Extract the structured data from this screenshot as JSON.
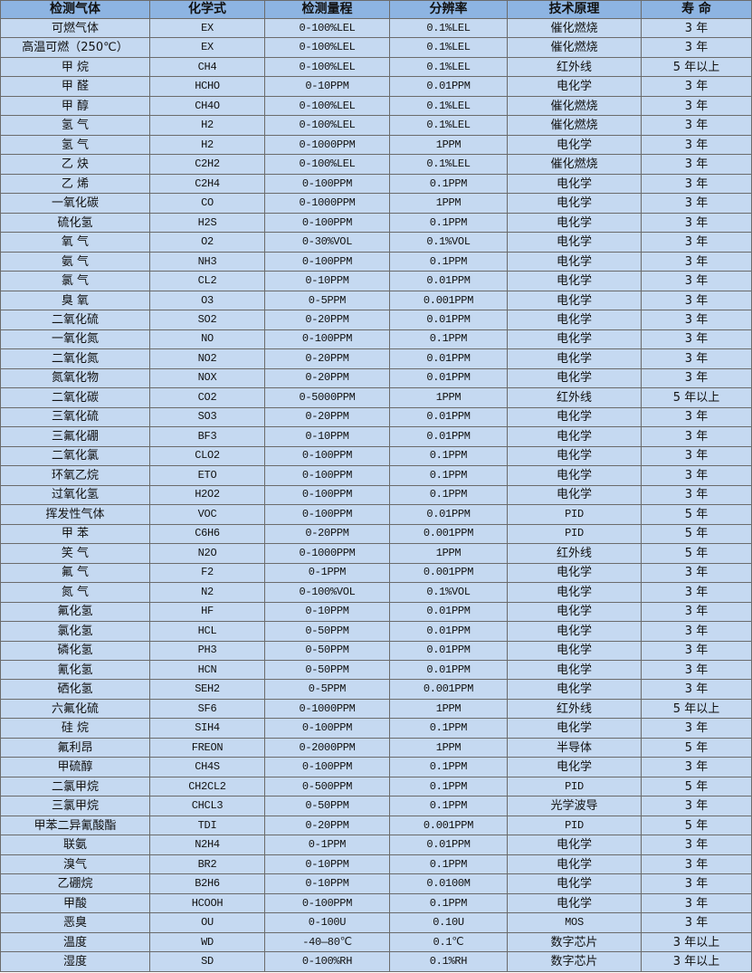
{
  "colors": {
    "header_bg": "#8db4e2",
    "row_bg": "#c5d9f1",
    "border": "#6b6b6b"
  },
  "headers": [
    "检测气体",
    "化学式",
    "检测量程",
    "分辨率",
    "技术原理",
    "寿 命"
  ],
  "rows": [
    [
      "可燃气体",
      "EX",
      "0-100%LEL",
      "0.1%LEL",
      "催化燃烧",
      "3 年"
    ],
    [
      "高温可燃（250℃）",
      "EX",
      "0-100%LEL",
      "0.1%LEL",
      "催化燃烧",
      "3 年"
    ],
    [
      "甲 烷",
      "CH4",
      "0-100%LEL",
      "0.1%LEL",
      "红外线",
      "5 年以上"
    ],
    [
      "甲 醛",
      "HCHO",
      "0-10PPM",
      "0.01PPM",
      "电化学",
      "3 年"
    ],
    [
      "甲 醇",
      "CH4O",
      "0-100%LEL",
      "0.1%LEL",
      "催化燃烧",
      "3 年"
    ],
    [
      "氢 气",
      "H2",
      "0-100%LEL",
      "0.1%LEL",
      "催化燃烧",
      "3 年"
    ],
    [
      "氢 气",
      "H2",
      "0-1000PPM",
      "1PPM",
      "电化学",
      "3 年"
    ],
    [
      "乙 炔",
      "C2H2",
      "0-100%LEL",
      "0.1%LEL",
      "催化燃烧",
      "3 年"
    ],
    [
      "乙 烯",
      "C2H4",
      "0-100PPM",
      "0.1PPM",
      "电化学",
      "3 年"
    ],
    [
      "一氧化碳",
      "CO",
      "0-1000PPM",
      "1PPM",
      "电化学",
      "3 年"
    ],
    [
      "硫化氢",
      "H2S",
      "0-100PPM",
      "0.1PPM",
      "电化学",
      "3 年"
    ],
    [
      "氧 气",
      "O2",
      "0-30%VOL",
      "0.1%VOL",
      "电化学",
      "3 年"
    ],
    [
      "氨 气",
      "NH3",
      "0-100PPM",
      "0.1PPM",
      "电化学",
      "3 年"
    ],
    [
      "氯 气",
      "CL2",
      "0-10PPM",
      "0.01PPM",
      "电化学",
      "3 年"
    ],
    [
      "臭 氧",
      "O3",
      "0-5PPM",
      "0.001PPM",
      "电化学",
      "3 年"
    ],
    [
      "二氧化硫",
      "SO2",
      "0-20PPM",
      "0.01PPM",
      "电化学",
      "3 年"
    ],
    [
      "一氧化氮",
      "NO",
      "0-100PPM",
      "0.1PPM",
      "电化学",
      "3 年"
    ],
    [
      "二氧化氮",
      "NO2",
      "0-20PPM",
      "0.01PPM",
      "电化学",
      "3 年"
    ],
    [
      "氮氧化物",
      "NOX",
      "0-20PPM",
      "0.01PPM",
      "电化学",
      "3 年"
    ],
    [
      "二氧化碳",
      "CO2",
      "0-5000PPM",
      "1PPM",
      "红外线",
      "5 年以上"
    ],
    [
      "三氧化硫",
      "SO3",
      "0-20PPM",
      "0.01PPM",
      "电化学",
      "3 年"
    ],
    [
      "三氟化硼",
      "BF3",
      "0-10PPM",
      "0.01PPM",
      "电化学",
      "3 年"
    ],
    [
      "二氧化氯",
      "CLO2",
      "0-100PPM",
      "0.1PPM",
      "电化学",
      "3 年"
    ],
    [
      "环氧乙烷",
      "ETO",
      "0-100PPM",
      "0.1PPM",
      "电化学",
      "3 年"
    ],
    [
      "过氧化氢",
      "H2O2",
      "0-100PPM",
      "0.1PPM",
      "电化学",
      "3 年"
    ],
    [
      "挥发性气体",
      "VOC",
      "0-100PPM",
      "0.01PPM",
      "PID",
      "5 年"
    ],
    [
      "甲 苯",
      "C6H6",
      "0-20PPM",
      "0.001PPM",
      "PID",
      "5 年"
    ],
    [
      "笑 气",
      "N2O",
      "0-1000PPM",
      "1PPM",
      "红外线",
      "5 年"
    ],
    [
      "氟 气",
      "F2",
      "0-1PPM",
      "0.001PPM",
      "电化学",
      "3 年"
    ],
    [
      "氮 气",
      "N2",
      "0-100%VOL",
      "0.1%VOL",
      "电化学",
      "3 年"
    ],
    [
      "氟化氢",
      "HF",
      "0-10PPM",
      "0.01PPM",
      "电化学",
      "3 年"
    ],
    [
      "氯化氢",
      "HCL",
      "0-50PPM",
      "0.01PPM",
      "电化学",
      "3 年"
    ],
    [
      "磷化氢",
      "PH3",
      "0-50PPM",
      "0.01PPM",
      "电化学",
      "3 年"
    ],
    [
      "氰化氢",
      "HCN",
      "0-50PPM",
      "0.01PPM",
      "电化学",
      "3 年"
    ],
    [
      "硒化氢",
      "SEH2",
      "0-5PPM",
      "0.001PPM",
      "电化学",
      "3 年"
    ],
    [
      "六氟化硫",
      "SF6",
      "0-1000PPM",
      "1PPM",
      "红外线",
      "5 年以上"
    ],
    [
      "硅 烷",
      "SIH4",
      "0-100PPM",
      "0.1PPM",
      "电化学",
      "3 年"
    ],
    [
      "氟利昂",
      "FREON",
      "0-2000PPM",
      "1PPM",
      "半导体",
      "5 年"
    ],
    [
      "甲硫醇",
      "CH4S",
      "0-100PPM",
      "0.1PPM",
      "电化学",
      "3 年"
    ],
    [
      "二氯甲烷",
      "CH2CL2",
      "0-500PPM",
      "0.1PPM",
      "PID",
      "5 年"
    ],
    [
      "三氯甲烷",
      "CHCL3",
      "0-50PPM",
      "0.1PPM",
      "光学波导",
      "3 年"
    ],
    [
      "甲苯二异氰酸酯",
      "TDI",
      "0-20PPM",
      "0.001PPM",
      "PID",
      "5 年"
    ],
    [
      "联氨",
      "N2H4",
      "0-1PPM",
      "0.01PPM",
      "电化学",
      "3 年"
    ],
    [
      "溴气",
      "BR2",
      "0-10PPM",
      "0.1PPM",
      "电化学",
      "3 年"
    ],
    [
      "乙硼烷",
      "B2H6",
      "0-10PPM",
      "0.0100M",
      "电化学",
      "3 年"
    ],
    [
      "甲酸",
      "HCOOH",
      "0-100PPM",
      "0.1PPM",
      "电化学",
      "3 年"
    ],
    [
      "恶臭",
      "OU",
      "0-100U",
      "0.10U",
      "MOS",
      "3 年"
    ],
    [
      "温度",
      "WD",
      "-40—80℃",
      "0.1℃",
      "数字芯片",
      "3 年以上"
    ],
    [
      "湿度",
      "SD",
      "0-100%RH",
      "0.1%RH",
      "数字芯片",
      "3 年以上"
    ]
  ]
}
